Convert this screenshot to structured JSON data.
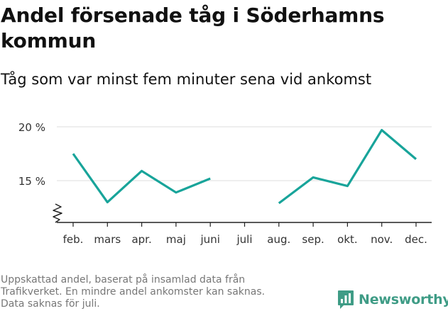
{
  "title": "Andel försenade tåg i Söderhamns kommun",
  "subtitle": "Tåg som var minst fem minuter sena vid ankomst",
  "footnote": [
    "Uppskattad andel, baserat på insamlad data från",
    "Trafikverket. En mindre andel ankomster kan saknas.",
    "Data saknas för juli."
  ],
  "brand": {
    "name": "Newsworthy",
    "icon": "newsworthy-logo-icon",
    "color": "#3f9c86"
  },
  "colors": {
    "line": "#18a49a",
    "grid": "#dddddd",
    "axis": "#222222"
  },
  "chart_data": {
    "type": "line",
    "title": "Andel försenade tåg i Söderhamns kommun",
    "subtitle": "Tåg som var minst fem minuter sena vid ankomst",
    "xlabel": "",
    "ylabel": "",
    "categories": [
      "feb.",
      "mars",
      "apr.",
      "maj",
      "juni",
      "juli",
      "aug.",
      "sep.",
      "okt.",
      "nov.",
      "dec."
    ],
    "series": [
      {
        "name": "Andel försenade tåg",
        "unit": "%",
        "values": [
          17.5,
          13.0,
          15.9,
          13.9,
          15.2,
          null,
          12.9,
          15.3,
          14.5,
          19.7,
          17.0
        ]
      }
    ],
    "yticks": [
      15,
      20
    ],
    "ytick_labels": [
      "15 %",
      "20 %"
    ],
    "ylim": [
      11.5,
      21.5
    ],
    "grid": true,
    "axis_break": true,
    "legend": "none"
  }
}
